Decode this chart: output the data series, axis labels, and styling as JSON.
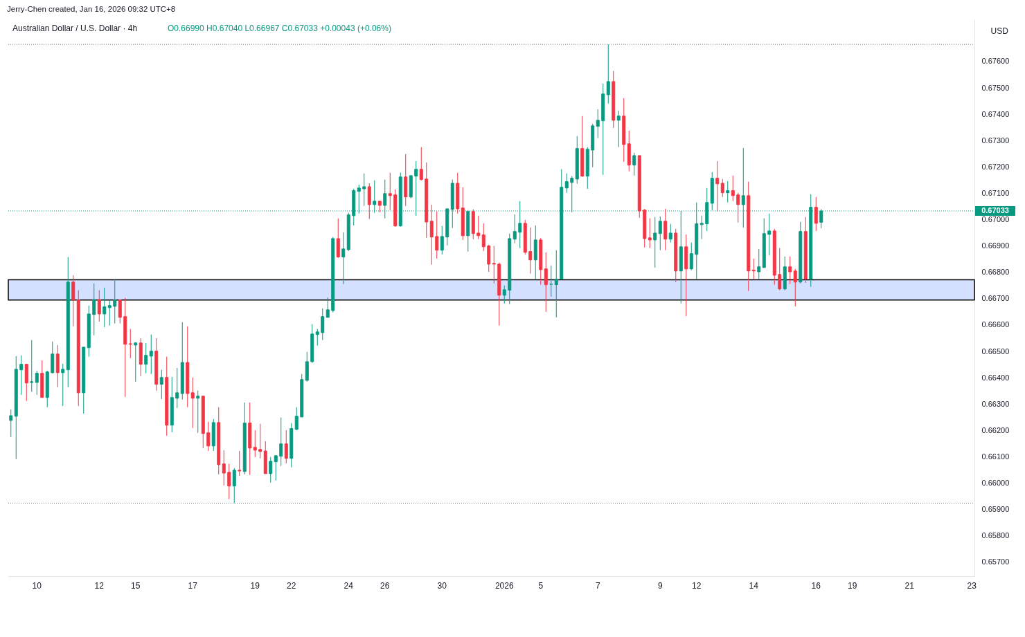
{
  "chart_data": {
    "type": "candlestick",
    "title": "Australian Dollar / U.S. Dollar · 4h",
    "subtitle": "O0.66990 H0.67040 L0.66967 C0.67033 +0.00043 (+0.06%)",
    "ylabel": "USD",
    "annotations": [
      "Jerry-Chen created, Jan 16, 2026 09:32 UTC+8"
    ],
    "ylim": [
      0.65647,
      0.6776
    ],
    "yticks": [
      {
        "value": 0.657,
        "label": "0.65700"
      },
      {
        "value": 0.658,
        "label": "0.65800"
      },
      {
        "value": 0.659,
        "label": "0.65900"
      },
      {
        "value": 0.66,
        "label": "0.66000"
      },
      {
        "value": 0.661,
        "label": "0.66100"
      },
      {
        "value": 0.662,
        "label": "0.66200"
      },
      {
        "value": 0.663,
        "label": "0.66300"
      },
      {
        "value": 0.664,
        "label": "0.66400"
      },
      {
        "value": 0.665,
        "label": "0.66500"
      },
      {
        "value": 0.666,
        "label": "0.66600"
      },
      {
        "value": 0.667,
        "label": "0.66700"
      },
      {
        "value": 0.668,
        "label": "0.66800"
      },
      {
        "value": 0.669,
        "label": "0.66900"
      },
      {
        "value": 0.67,
        "label": "0.67000"
      },
      {
        "value": 0.671,
        "label": "0.67100"
      },
      {
        "value": 0.672,
        "label": "0.67200"
      },
      {
        "value": 0.673,
        "label": "0.67300"
      },
      {
        "value": 0.674,
        "label": "0.67400"
      },
      {
        "value": 0.675,
        "label": "0.67500"
      },
      {
        "value": 0.676,
        "label": "0.67600"
      }
    ],
    "categories": [
      null,
      null,
      null,
      null,
      null,
      "10",
      null,
      null,
      null,
      null,
      null,
      null,
      null,
      null,
      null,
      null,
      null,
      "12",
      null,
      null,
      null,
      null,
      null,
      null,
      "15",
      null,
      null,
      null,
      null,
      null,
      null,
      null,
      null,
      null,
      null,
      "17",
      null,
      null,
      null,
      null,
      null,
      null,
      null,
      null,
      null,
      null,
      null,
      "19",
      null,
      null,
      null,
      null,
      null,
      null,
      "22",
      null,
      null,
      null,
      null,
      null,
      null,
      null,
      null,
      null,
      null,
      "24",
      null,
      null,
      null,
      null,
      null,
      null,
      "26",
      null,
      null,
      null,
      null,
      null,
      null,
      null,
      null,
      null,
      null,
      "30",
      null,
      null,
      null,
      null,
      null,
      null,
      null,
      null,
      null,
      null,
      null,
      "2026",
      null,
      null,
      null,
      null,
      null,
      null,
      "5",
      null,
      null,
      null,
      null,
      null,
      null,
      null,
      null,
      null,
      null,
      "7",
      null,
      null,
      null,
      null,
      null,
      null,
      null,
      null,
      null,
      null,
      null,
      "9",
      null,
      null,
      null,
      null,
      null,
      null,
      "12",
      null,
      null,
      null,
      null,
      null,
      null,
      null,
      null,
      null,
      null,
      "14",
      null,
      null,
      null,
      null,
      null,
      null,
      null,
      null,
      null,
      null,
      null,
      "16",
      null,
      null,
      null,
      null,
      null,
      null,
      "19",
      null,
      null,
      null,
      null,
      null,
      null,
      null,
      null,
      null,
      null,
      "21",
      null,
      null,
      null,
      null,
      null,
      null,
      null,
      null,
      null,
      null,
      null,
      "23"
    ],
    "ohlc": [
      [
        0.66238,
        0.6628,
        0.66175,
        0.66256
      ],
      [
        0.66254,
        0.66482,
        0.66091,
        0.66432
      ],
      [
        0.6643,
        0.66485,
        0.66335,
        0.66451
      ],
      [
        0.66451,
        0.66453,
        0.66312,
        0.6638
      ],
      [
        0.66382,
        0.66543,
        0.66346,
        0.66385
      ],
      [
        0.66382,
        0.66427,
        0.66335,
        0.66417
      ],
      [
        0.66417,
        0.66466,
        0.66325,
        0.66325
      ],
      [
        0.66325,
        0.66427,
        0.66288,
        0.66422
      ],
      [
        0.66419,
        0.66537,
        0.66417,
        0.6649
      ],
      [
        0.6649,
        0.66524,
        0.66364,
        0.66419
      ],
      [
        0.66419,
        0.66453,
        0.66293,
        0.66432
      ],
      [
        0.6643,
        0.66858,
        0.66364,
        0.66763
      ],
      [
        0.66763,
        0.66789,
        0.66595,
        0.66695
      ],
      [
        0.66695,
        0.66732,
        0.66293,
        0.66343
      ],
      [
        0.66343,
        0.66516,
        0.66264,
        0.66516
      ],
      [
        0.66514,
        0.66674,
        0.6648,
        0.66642
      ],
      [
        0.6664,
        0.66758,
        0.66561,
        0.66697
      ],
      [
        0.66697,
        0.66732,
        0.66613,
        0.66642
      ],
      [
        0.66642,
        0.66742,
        0.66592,
        0.66669
      ],
      [
        0.66666,
        0.66695,
        0.66598,
        0.66674
      ],
      [
        0.66671,
        0.66774,
        0.66606,
        0.66695
      ],
      [
        0.66695,
        0.66697,
        0.66606,
        0.66629
      ],
      [
        0.66632,
        0.66703,
        0.66327,
        0.66527
      ],
      [
        0.66529,
        0.66585,
        0.66474,
        0.66527
      ],
      [
        0.66524,
        0.66535,
        0.66385,
        0.66532
      ],
      [
        0.66532,
        0.6655,
        0.66406,
        0.66451
      ],
      [
        0.66451,
        0.66532,
        0.66417,
        0.66485
      ],
      [
        0.66482,
        0.66564,
        0.66414,
        0.66501
      ],
      [
        0.66501,
        0.6655,
        0.66351,
        0.66375
      ],
      [
        0.66375,
        0.6643,
        0.66319,
        0.66401
      ],
      [
        0.66401,
        0.6648,
        0.6618,
        0.6622
      ],
      [
        0.6622,
        0.66403,
        0.66193,
        0.66325
      ],
      [
        0.66322,
        0.66437,
        0.66285,
        0.66343
      ],
      [
        0.6634,
        0.66611,
        0.66317,
        0.66458
      ],
      [
        0.66458,
        0.66595,
        0.66288,
        0.6634
      ],
      [
        0.66343,
        0.66401,
        0.66209,
        0.66322
      ],
      [
        0.66322,
        0.66351,
        0.66191,
        0.6633
      ],
      [
        0.6633,
        0.66332,
        0.66133,
        0.66188
      ],
      [
        0.66191,
        0.66233,
        0.66122,
        0.66141
      ],
      [
        0.66141,
        0.66243,
        0.66122,
        0.6623
      ],
      [
        0.6623,
        0.66288,
        0.66033,
        0.6607
      ],
      [
        0.66073,
        0.66125,
        0.65991,
        0.66038
      ],
      [
        0.66041,
        0.66073,
        0.65939,
        0.65989
      ],
      [
        0.65989,
        0.66057,
        0.65924,
        0.66049
      ],
      [
        0.66049,
        0.66122,
        0.66028,
        0.66046
      ],
      [
        0.66044,
        0.66306,
        0.66033,
        0.66228
      ],
      [
        0.66228,
        0.66306,
        0.66031,
        0.66133
      ],
      [
        0.66136,
        0.66201,
        0.66099,
        0.66125
      ],
      [
        0.66128,
        0.66225,
        0.66094,
        0.6612
      ],
      [
        0.66122,
        0.66159,
        0.66036,
        0.66036
      ],
      [
        0.66036,
        0.66099,
        0.66002,
        0.66083
      ],
      [
        0.66081,
        0.66107,
        0.6601,
        0.66104
      ],
      [
        0.66102,
        0.66249,
        0.66065,
        0.66149
      ],
      [
        0.66149,
        0.66201,
        0.66075,
        0.66094
      ],
      [
        0.66094,
        0.66228,
        0.6606,
        0.66207
      ],
      [
        0.66204,
        0.66288,
        0.66201,
        0.66254
      ],
      [
        0.66251,
        0.66414,
        0.66251,
        0.66393
      ],
      [
        0.6639,
        0.66498,
        0.66385,
        0.66461
      ],
      [
        0.66461,
        0.66603,
        0.66456,
        0.66566
      ],
      [
        0.66564,
        0.66585,
        0.66522,
        0.66574
      ],
      [
        0.66571,
        0.66663,
        0.66543,
        0.66632
      ],
      [
        0.66629,
        0.66705,
        0.66629,
        0.66658
      ],
      [
        0.66655,
        0.66934,
        0.66648,
        0.66928
      ],
      [
        0.66928,
        0.67005,
        0.66855,
        0.66858
      ],
      [
        0.66858,
        0.66952,
        0.66755,
        0.66889
      ],
      [
        0.66886,
        0.67026,
        0.66881,
        0.67018
      ],
      [
        0.67015,
        0.67117,
        0.66978,
        0.6711
      ],
      [
        0.67107,
        0.67133,
        0.67023,
        0.6712
      ],
      [
        0.67117,
        0.67175,
        0.67052,
        0.67125
      ],
      [
        0.67125,
        0.67138,
        0.67002,
        0.67057
      ],
      [
        0.67057,
        0.67149,
        0.67026,
        0.6707
      ],
      [
        0.6707,
        0.6707,
        0.67028,
        0.67054
      ],
      [
        0.67054,
        0.67152,
        0.67005,
        0.67099
      ],
      [
        0.67099,
        0.67178,
        0.67036,
        0.67091
      ],
      [
        0.67094,
        0.67115,
        0.66973,
        0.66976
      ],
      [
        0.66976,
        0.67178,
        0.66973,
        0.67162
      ],
      [
        0.67162,
        0.67249,
        0.67052,
        0.67086
      ],
      [
        0.67086,
        0.67167,
        0.67081,
        0.67167
      ],
      [
        0.67165,
        0.67222,
        0.67015,
        0.67191
      ],
      [
        0.67191,
        0.67275,
        0.67149,
        0.67152
      ],
      [
        0.67154,
        0.67217,
        0.66931,
        0.66991
      ],
      [
        0.66994,
        0.67057,
        0.66829,
        0.66934
      ],
      [
        0.66936,
        0.67031,
        0.66852,
        0.66884
      ],
      [
        0.66884,
        0.66976,
        0.66868,
        0.66936
      ],
      [
        0.66934,
        0.67041,
        0.66902,
        0.67041
      ],
      [
        0.67039,
        0.67152,
        0.66968,
        0.67138
      ],
      [
        0.67138,
        0.67178,
        0.67023,
        0.67041
      ],
      [
        0.67044,
        0.67123,
        0.66923,
        0.66939
      ],
      [
        0.66939,
        0.67036,
        0.66879,
        0.67031
      ],
      [
        0.67031,
        0.67039,
        0.66926,
        0.66947
      ],
      [
        0.66949,
        0.67015,
        0.66926,
        0.66939
      ],
      [
        0.66942,
        0.66986,
        0.66881,
        0.66897
      ],
      [
        0.669,
        0.66905,
        0.66802,
        0.66831
      ],
      [
        0.66834,
        0.669,
        0.66758,
        0.66831
      ],
      [
        0.66831,
        0.66837,
        0.66598,
        0.66713
      ],
      [
        0.66713,
        0.6675,
        0.66682,
        0.66734
      ],
      [
        0.66732,
        0.66947,
        0.66679,
        0.66928
      ],
      [
        0.66926,
        0.6702,
        0.6691,
        0.66955
      ],
      [
        0.66952,
        0.6707,
        0.66892,
        0.66986
      ],
      [
        0.66986,
        0.66999,
        0.66868,
        0.66876
      ],
      [
        0.66879,
        0.6697,
        0.66795,
        0.66847
      ],
      [
        0.66847,
        0.66978,
        0.66774,
        0.66923
      ],
      [
        0.66923,
        0.66931,
        0.66753,
        0.6681
      ],
      [
        0.66813,
        0.66876,
        0.6665,
        0.66753
      ],
      [
        0.66755,
        0.66826,
        0.66708,
        0.66755
      ],
      [
        0.66753,
        0.66884,
        0.66629,
        0.66774
      ],
      [
        0.66774,
        0.67191,
        0.66774,
        0.67123
      ],
      [
        0.6712,
        0.67175,
        0.67102,
        0.67144
      ],
      [
        0.67141,
        0.67165,
        0.67028,
        0.67157
      ],
      [
        0.67154,
        0.67317,
        0.67136,
        0.6727
      ],
      [
        0.6727,
        0.67393,
        0.67162,
        0.67165
      ],
      [
        0.67165,
        0.67275,
        0.67117,
        0.67267
      ],
      [
        0.67264,
        0.67364,
        0.67199,
        0.67356
      ],
      [
        0.67354,
        0.67419,
        0.67309,
        0.67377
      ],
      [
        0.67375,
        0.67516,
        0.6717,
        0.67477
      ],
      [
        0.67474,
        0.67665,
        0.6744,
        0.67524
      ],
      [
        0.67524,
        0.67564,
        0.67348,
        0.67377
      ],
      [
        0.67377,
        0.67414,
        0.67275,
        0.67393
      ],
      [
        0.67393,
        0.67461,
        0.6722,
        0.67285
      ],
      [
        0.67288,
        0.67338,
        0.67183,
        0.67207
      ],
      [
        0.67207,
        0.67254,
        0.67167,
        0.67243
      ],
      [
        0.67243,
        0.67243,
        0.67007,
        0.67033
      ],
      [
        0.67036,
        0.67041,
        0.66894,
        0.66928
      ],
      [
        0.66931,
        0.67005,
        0.66892,
        0.66923
      ],
      [
        0.66923,
        0.6701,
        0.66818,
        0.66949
      ],
      [
        0.66947,
        0.67012,
        0.66884,
        0.66994
      ],
      [
        0.66994,
        0.67041,
        0.66884,
        0.66926
      ],
      [
        0.66926,
        0.66984,
        0.66913,
        0.66949
      ],
      [
        0.66949,
        0.66965,
        0.66763,
        0.66805
      ],
      [
        0.66805,
        0.67033,
        0.66682,
        0.66897
      ],
      [
        0.66897,
        0.66944,
        0.66634,
        0.66813
      ],
      [
        0.66813,
        0.66913,
        0.66808,
        0.66871
      ],
      [
        0.66868,
        0.67065,
        0.66774,
        0.66984
      ],
      [
        0.66981,
        0.67015,
        0.66926,
        0.66986
      ],
      [
        0.66984,
        0.6712,
        0.66957,
        0.67065
      ],
      [
        0.67062,
        0.6718,
        0.67036,
        0.67157
      ],
      [
        0.67157,
        0.67222,
        0.67031,
        0.67136
      ],
      [
        0.67138,
        0.67154,
        0.67086,
        0.67102
      ],
      [
        0.67102,
        0.67146,
        0.67065,
        0.6711
      ],
      [
        0.6711,
        0.67167,
        0.6707,
        0.67091
      ],
      [
        0.67094,
        0.67102,
        0.66989,
        0.67057
      ],
      [
        0.67057,
        0.67272,
        0.6697,
        0.67091
      ],
      [
        0.67091,
        0.67144,
        0.66729,
        0.66805
      ],
      [
        0.66808,
        0.66852,
        0.66774,
        0.66805
      ],
      [
        0.66802,
        0.66889,
        0.66774,
        0.66821
      ],
      [
        0.66818,
        0.67005,
        0.66818,
        0.66947
      ],
      [
        0.66944,
        0.67023,
        0.66865,
        0.66957
      ],
      [
        0.66957,
        0.66965,
        0.66753,
        0.66789
      ],
      [
        0.66792,
        0.66892,
        0.66732,
        0.66737
      ],
      [
        0.66737,
        0.6686,
        0.66732,
        0.66821
      ],
      [
        0.66821,
        0.6686,
        0.66755,
        0.66802
      ],
      [
        0.66805,
        0.66813,
        0.66671,
        0.66763
      ],
      [
        0.66763,
        0.66991,
        0.66758,
        0.66955
      ],
      [
        0.66955,
        0.6701,
        0.6676,
        0.66774
      ],
      [
        0.66774,
        0.67096,
        0.66745,
        0.67047
      ],
      [
        0.67047,
        0.67086,
        0.66957,
        0.66986
      ],
      [
        0.6699,
        0.6704,
        0.66967,
        0.67033
      ],
      null,
      null,
      null,
      null,
      null,
      null,
      null,
      null,
      null,
      null,
      null,
      null,
      null,
      null,
      null,
      null,
      null,
      null,
      null,
      null,
      null,
      null,
      null,
      null,
      null,
      null,
      null,
      null,
      null
    ],
    "colors": [
      "#089981",
      "#089981",
      "#089981",
      "#f23645",
      "#089981",
      "#089981",
      "#f23645",
      "#089981",
      "#089981",
      "#f23645",
      "#089981",
      "#089981",
      "#f23645",
      "#f23645",
      "#089981",
      "#089981",
      "#089981",
      "#f23645",
      "#089981",
      "#089981",
      "#089981",
      "#f23645",
      "#f23645",
      "#f23645",
      "#089981",
      "#f23645",
      "#089981",
      "#089981",
      "#f23645",
      "#089981",
      "#f23645",
      "#089981",
      "#089981",
      "#089981",
      "#f23645",
      "#f23645",
      "#089981",
      "#f23645",
      "#f23645",
      "#089981",
      "#f23645",
      "#f23645",
      "#f23645",
      "#089981",
      "#f23645",
      "#089981",
      "#f23645",
      "#f23645",
      "#f23645",
      "#f23645",
      "#089981",
      "#089981",
      "#089981",
      "#f23645",
      "#089981",
      "#089981",
      "#089981",
      "#089981",
      "#089981",
      "#089981",
      "#089981",
      "#089981",
      "#089981",
      "#f23645",
      "#089981",
      "#089981",
      "#089981",
      "#089981",
      "#089981",
      "#f23645",
      "#089981",
      "#f23645",
      "#089981",
      "#f23645",
      "#f23645",
      "#089981",
      "#f23645",
      "#089981",
      "#089981",
      "#f23645",
      "#f23645",
      "#f23645",
      "#f23645",
      "#089981",
      "#089981",
      "#089981",
      "#f23645",
      "#f23645",
      "#089981",
      "#f23645",
      "#f23645",
      "#f23645",
      "#f23645",
      "#f23645",
      "#f23645",
      "#089981",
      "#089981",
      "#089981",
      "#089981",
      "#f23645",
      "#f23645",
      "#089981",
      "#f23645",
      "#f23645",
      "#089981",
      "#089981",
      "#089981",
      "#089981",
      "#089981",
      "#089981",
      "#f23645",
      "#089981",
      "#089981",
      "#089981",
      "#089981",
      "#089981",
      "#f23645",
      "#089981",
      "#f23645",
      "#f23645",
      "#089981",
      "#f23645",
      "#f23645",
      "#f23645",
      "#089981",
      "#089981",
      "#f23645",
      "#089981",
      "#f23645",
      "#089981",
      "#f23645",
      "#089981",
      "#089981",
      "#089981",
      "#089981",
      "#089981",
      "#f23645",
      "#f23645",
      "#089981",
      "#f23645",
      "#f23645",
      "#089981",
      "#f23645",
      "#f23645",
      "#089981",
      "#089981",
      "#089981",
      "#f23645",
      "#f23645",
      "#089981",
      "#f23645",
      "#f23645",
      "#089981",
      "#f23645",
      "#089981",
      "#f23645",
      "#089981",
      null,
      null,
      null,
      null,
      null,
      null,
      null,
      null,
      null,
      null,
      null,
      null,
      null,
      null,
      null,
      null,
      null,
      null,
      null,
      null,
      null,
      null,
      null,
      null,
      null,
      null,
      null,
      null,
      null
    ],
    "ref_lines": [
      {
        "axis": "y",
        "value": 0.67665,
        "color": "#787b86",
        "line_style": "dotted"
      },
      {
        "axis": "y",
        "value": 0.65924,
        "color": "#787b86",
        "line_style": "dotted"
      },
      {
        "axis": "y",
        "value": 0.67033,
        "label": "0.67033",
        "color": "#089981",
        "line_style": "dotted"
      }
    ],
    "bands": [
      {
        "axis": "y",
        "from": 0.66695,
        "to": 0.66772,
        "color": "#2962ff"
      }
    ]
  }
}
